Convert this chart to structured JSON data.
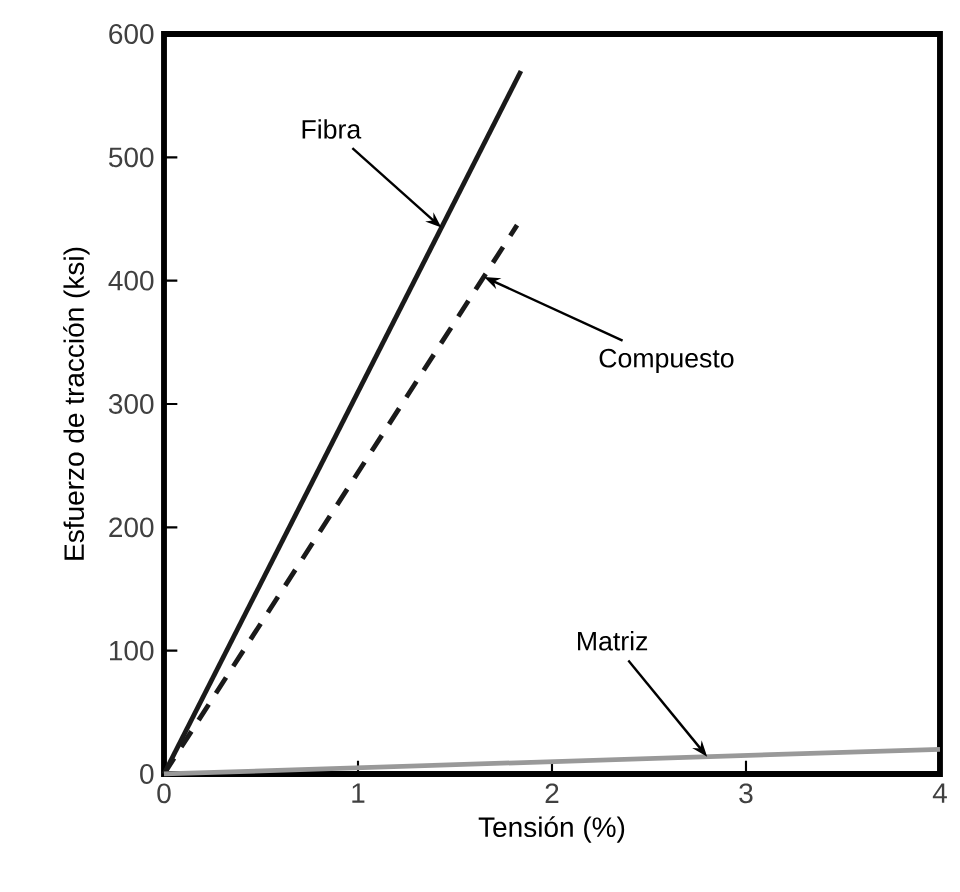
{
  "chart_data": {
    "type": "line",
    "xlabel": "Tensión (%)",
    "ylabel": "Esfuerzo de tracción (ksi)",
    "xlim": [
      0,
      4
    ],
    "ylim": [
      0,
      600
    ],
    "xticks": [
      0,
      1,
      2,
      3,
      4
    ],
    "yticks": [
      0,
      100,
      200,
      300,
      400,
      500,
      600
    ],
    "grid": false,
    "marker": "none",
    "series": [
      {
        "color": "#1a1a1a",
        "line_style": "solid",
        "x": [
          0,
          1.84
        ],
        "values": [
          0,
          570
        ]
      },
      {
        "color": "#1a1a1a",
        "line_style": "dashed",
        "x": [
          0,
          1.82
        ],
        "values": [
          0,
          445
        ]
      },
      {
        "color": "#999999",
        "line_style": "solid",
        "x": [
          0,
          4
        ],
        "values": [
          0,
          20
        ]
      }
    ],
    "annotations": [
      {
        "text": "Fibra",
        "x": 1.43,
        "y": 443
      },
      {
        "text": "Compuesto",
        "x": 1.65,
        "y": 403
      },
      {
        "text": "Matriz",
        "x": 2.8,
        "y": 14
      }
    ]
  }
}
